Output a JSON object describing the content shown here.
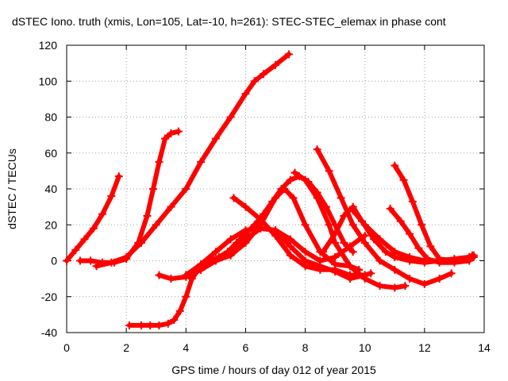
{
  "chart_data": {
    "type": "scatter",
    "title": "dSTEC Iono. truth (xmis, Lon=105, Lat=-10, h=261): STEC-STEC_elemax in phase cont",
    "xlabel": "GPS time / hours of day 012 of year 2015",
    "ylabel": "dSTEC  / TECUs",
    "xlim": [
      0,
      14
    ],
    "ylim": [
      -40,
      120
    ],
    "xticks": [
      0,
      2,
      4,
      6,
      8,
      10,
      12,
      14
    ],
    "yticks": [
      -40,
      -20,
      0,
      20,
      40,
      60,
      80,
      100,
      120
    ],
    "grid": true,
    "color": "#ff0000",
    "series": [
      {
        "x": [
          0.0,
          0.3,
          0.6,
          0.9,
          1.2,
          1.5,
          1.75
        ],
        "values": [
          0,
          6,
          12,
          18,
          26,
          36,
          47
        ]
      },
      {
        "x": [
          0.45,
          0.8,
          1.2,
          1.6,
          2.0,
          2.4,
          2.7,
          2.9,
          3.1,
          3.3,
          3.5,
          3.75
        ],
        "values": [
          0,
          0,
          -1,
          -1,
          1,
          10,
          25,
          40,
          55,
          68,
          71,
          72
        ]
      },
      {
        "x": [
          1.0,
          1.5,
          2.0,
          2.5,
          3.0,
          3.5,
          4.0,
          4.5,
          5.0,
          5.5,
          6.0,
          6.3,
          6.6,
          7.0,
          7.45
        ],
        "values": [
          -3,
          -1,
          2,
          10,
          20,
          30,
          40,
          55,
          68,
          80,
          93,
          100,
          104,
          109,
          115
        ]
      },
      {
        "x": [
          2.1,
          2.5,
          2.8,
          3.1,
          3.4,
          3.6,
          3.8,
          4.0,
          4.2,
          4.5,
          4.8,
          5.1,
          5.4,
          5.7,
          6.0,
          6.3,
          6.6,
          6.9,
          7.2,
          7.5,
          7.8,
          8.1,
          8.4,
          8.7,
          9.0,
          9.3,
          9.6
        ],
        "values": [
          -36,
          -36,
          -36,
          -36,
          -35,
          -33,
          -28,
          -20,
          -10,
          -3,
          0,
          2,
          5,
          10,
          15,
          20,
          26,
          33,
          40,
          45,
          47,
          44,
          38,
          30,
          20,
          10,
          5
        ]
      },
      {
        "x": [
          3.1,
          3.5,
          4.0,
          4.5,
          5.0,
          5.5,
          6.0,
          6.5,
          7.0,
          7.3,
          7.6,
          8.0,
          8.5,
          9.0,
          9.5,
          9.8
        ],
        "values": [
          -8,
          -10,
          -9,
          -5,
          0,
          3,
          10,
          20,
          35,
          40,
          35,
          20,
          5,
          -2,
          -3,
          -5
        ]
      },
      {
        "x": [
          4.0,
          4.5,
          5.0,
          5.5,
          6.0,
          6.5,
          7.0,
          7.5,
          8.0,
          8.5,
          9.0,
          9.5,
          10.0
        ],
        "values": [
          -8,
          -2,
          5,
          12,
          17,
          18,
          17,
          12,
          5,
          0,
          2,
          8,
          14
        ]
      },
      {
        "x": [
          5.6,
          6.0,
          6.5,
          7.0,
          7.5,
          8.0,
          8.5,
          9.0,
          9.5,
          10.0
        ],
        "values": [
          35,
          30,
          23,
          14,
          3,
          -3,
          -5,
          -5,
          -8,
          -8
        ]
      },
      {
        "x": [
          4.5,
          5.0,
          5.5,
          6.0,
          6.5,
          7.0,
          7.5,
          8.0,
          8.5,
          9.0,
          9.5,
          10.0,
          10.2
        ],
        "values": [
          -5,
          0,
          5,
          12,
          18,
          17,
          8,
          0,
          -3,
          -6,
          -10,
          -8,
          -7
        ]
      },
      {
        "x": [
          7.65,
          8.0,
          8.4,
          8.8,
          9.0,
          9.5,
          10.0,
          10.5,
          11.0,
          11.35
        ],
        "values": [
          49,
          45,
          35,
          20,
          10,
          -3,
          -10,
          -14,
          -15,
          -14
        ]
      },
      {
        "x": [
          8.4,
          8.8,
          9.2,
          9.6,
          10.0,
          10.5,
          11.0,
          11.5,
          12.0,
          12.5,
          12.9
        ],
        "values": [
          62,
          50,
          35,
          20,
          10,
          0,
          -5,
          -10,
          -13,
          -10,
          -7
        ]
      },
      {
        "x": [
          8.6,
          9.0,
          9.3,
          9.6,
          9.9,
          10.3,
          10.7,
          11.0,
          11.5,
          12.0,
          12.5,
          13.0,
          13.5
        ],
        "values": [
          5,
          15,
          25,
          30,
          22,
          12,
          5,
          2,
          0,
          -1,
          0,
          1,
          2
        ]
      },
      {
        "x": [
          9.6,
          10.0,
          10.5,
          11.0,
          11.5,
          12.0,
          12.5,
          13.0,
          13.5,
          13.6
        ],
        "values": [
          28,
          20,
          12,
          5,
          2,
          0,
          0,
          1,
          2,
          3
        ]
      },
      {
        "x": [
          10.85,
          11.2,
          11.5,
          11.8,
          12.1,
          12.5,
          13.0,
          13.5,
          13.65
        ],
        "values": [
          29,
          22,
          15,
          7,
          1,
          -1,
          -1,
          0,
          2
        ]
      },
      {
        "x": [
          11.0,
          11.3,
          11.6,
          11.9,
          12.2,
          12.5,
          13.0,
          13.5,
          13.65
        ],
        "values": [
          53,
          45,
          33,
          20,
          8,
          1,
          0,
          1,
          3
        ]
      }
    ]
  }
}
